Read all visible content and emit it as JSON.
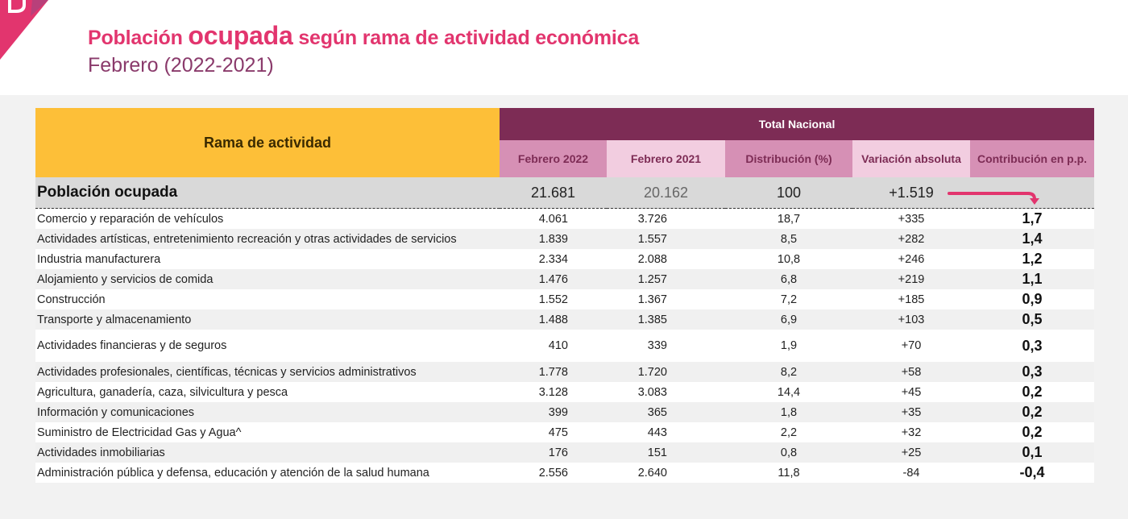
{
  "header": {
    "badge_icon": "section-badge-icon",
    "title_part1": "Población ",
    "title_part2": "ocupada",
    "title_part3": " según rama de actividad económica",
    "subtitle": "Febrero (2022-2021)"
  },
  "colors": {
    "accent_pink": "#e2356e",
    "header_maroon": "#7d2c55",
    "header_yellow": "#fdbf38",
    "sub_dark": "#d690b5",
    "sub_light": "#f2cde0"
  },
  "table": {
    "rama_header": "Rama de actividad",
    "group_header": "Total Nacional",
    "columns": [
      "Febrero 2022",
      "Febrero 2021",
      "Distribución (%)",
      "Variación absoluta",
      "Contribución en p.p."
    ],
    "total_row": {
      "name": "Población ocupada",
      "feb2022": "21.681",
      "feb2021": "20.162",
      "distribucion": "100",
      "variacion": "+1.519",
      "arrow_icon": "pink-arrow-down-right-icon"
    },
    "rows": [
      {
        "name": "Comercio y reparación de vehículos",
        "feb2022": "4.061",
        "feb2021": "3.726",
        "distribucion": "18,7",
        "variacion": "+335",
        "contribucion": "1,7"
      },
      {
        "name": "Actividades artísticas, entretenimiento recreación y otras actividades de servicios",
        "feb2022": "1.839",
        "feb2021": "1.557",
        "distribucion": "8,5",
        "variacion": "+282",
        "contribucion": "1,4"
      },
      {
        "name": "Industria manufacturera",
        "feb2022": "2.334",
        "feb2021": "2.088",
        "distribucion": "10,8",
        "variacion": "+246",
        "contribucion": "1,2"
      },
      {
        "name": "Alojamiento y servicios de comida",
        "feb2022": "1.476",
        "feb2021": "1.257",
        "distribucion": "6,8",
        "variacion": "+219",
        "contribucion": "1,1"
      },
      {
        "name": "Construcción",
        "feb2022": "1.552",
        "feb2021": "1.367",
        "distribucion": "7,2",
        "variacion": "+185",
        "contribucion": "0,9"
      },
      {
        "name": "Transporte y almacenamiento",
        "feb2022": "1.488",
        "feb2021": "1.385",
        "distribucion": "6,9",
        "variacion": "+103",
        "contribucion": "0,5"
      },
      {
        "name": "Actividades financieras y de seguros",
        "feb2022": "410",
        "feb2021": "339",
        "distribucion": "1,9",
        "variacion": "+70",
        "contribucion": "0,3"
      },
      {
        "name": "Actividades profesionales, científicas, técnicas y servicios administrativos",
        "feb2022": "1.778",
        "feb2021": "1.720",
        "distribucion": "8,2",
        "variacion": "+58",
        "contribucion": "0,3"
      },
      {
        "name": "Agricultura, ganadería, caza, silvicultura y pesca",
        "feb2022": "3.128",
        "feb2021": "3.083",
        "distribucion": "14,4",
        "variacion": "+45",
        "contribucion": "0,2"
      },
      {
        "name": "Información y comunicaciones",
        "feb2022": "399",
        "feb2021": "365",
        "distribucion": "1,8",
        "variacion": "+35",
        "contribucion": "0,2"
      },
      {
        "name": "Suministro de Electricidad Gas y Agua^",
        "feb2022": "475",
        "feb2021": "443",
        "distribucion": "2,2",
        "variacion": "+32",
        "contribucion": "0,2"
      },
      {
        "name": "Actividades inmobiliarias",
        "feb2022": "176",
        "feb2021": "151",
        "distribucion": "0,8",
        "variacion": "+25",
        "contribucion": "0,1"
      },
      {
        "name": "Administración pública y defensa, educación y atención de la salud humana",
        "feb2022": "2.556",
        "feb2021": "2.640",
        "distribucion": "11,8",
        "variacion": "-84",
        "contribucion": "-0,4"
      }
    ]
  }
}
